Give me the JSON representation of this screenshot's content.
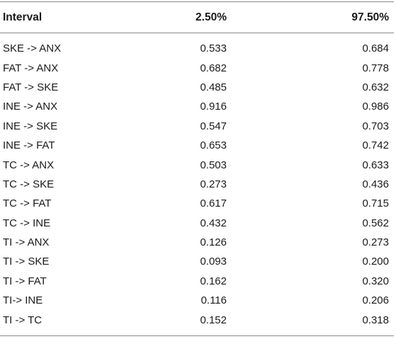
{
  "table": {
    "headers": [
      "Interval",
      "2.50%",
      "97.50%"
    ],
    "rows": [
      {
        "interval": "SKE -> ANX",
        "low": "0.533",
        "high": "0.684"
      },
      {
        "interval": "FAT -> ANX",
        "low": "0.682",
        "high": "0.778"
      },
      {
        "interval": "FAT -> SKE",
        "low": "0.485",
        "high": "0.632"
      },
      {
        "interval": "INE -> ANX",
        "low": "0.916",
        "high": "0.986"
      },
      {
        "interval": "INE -> SKE",
        "low": "0.547",
        "high": "0.703"
      },
      {
        "interval": "INE -> FAT",
        "low": "0.653",
        "high": "0.742"
      },
      {
        "interval": "TC -> ANX",
        "low": "0.503",
        "high": "0.633"
      },
      {
        "interval": "TC -> SKE",
        "low": "0.273",
        "high": "0.436"
      },
      {
        "interval": "TC -> FAT",
        "low": "0.617",
        "high": "0.715"
      },
      {
        "interval": "TC -> INE",
        "low": "0.432",
        "high": "0.562"
      },
      {
        "interval": "TI -> ANX",
        "low": "0.126",
        "high": "0.273"
      },
      {
        "interval": "TI -> SKE",
        "low": "0.093",
        "high": "0.200"
      },
      {
        "interval": "TI -> FAT",
        "low": "0.162",
        "high": "0.320"
      },
      {
        "interval": "TI-> INE",
        "low": "0.116",
        "high": "0.206"
      },
      {
        "interval": "TI -> TC",
        "low": "0.152",
        "high": "0.318"
      }
    ]
  },
  "colors": {
    "rule": "#8a8a8a",
    "text": "#1a1a1a",
    "background": "#ffffff"
  }
}
